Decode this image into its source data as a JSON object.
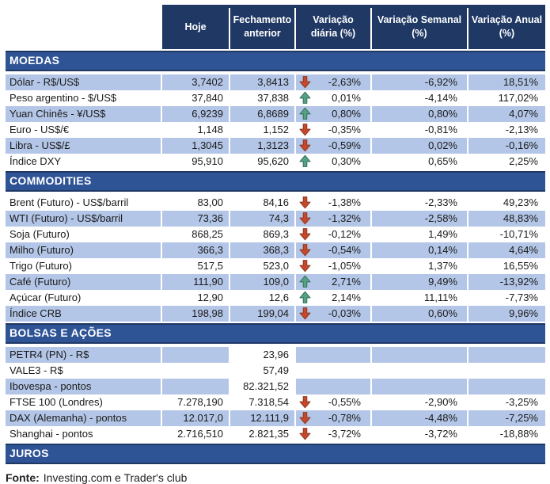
{
  "table": {
    "columns": [
      {
        "id": "label",
        "label": ""
      },
      {
        "id": "hoje",
        "label": "Hoje"
      },
      {
        "id": "fechamento",
        "label": "Fechamento anterior"
      },
      {
        "id": "diaria",
        "label": "Variação diária (%)"
      },
      {
        "id": "semanal",
        "label": "Variação Semanal (%)"
      },
      {
        "id": "anual",
        "label": "Variação Anual (%)"
      }
    ],
    "sections": [
      {
        "title": "MOEDAS",
        "zebra_start": "shaded",
        "rows": [
          {
            "label": "Dólar - R$/US$",
            "hoje": "3,7402",
            "fechamento": "3,8413",
            "arrow": "down",
            "daily": "-2,63%",
            "weekly": "-6,92%",
            "annual": "18,51%"
          },
          {
            "label": "Peso argentino - $/US$",
            "hoje": "37,840",
            "fechamento": "37,838",
            "arrow": "up",
            "daily": "0,01%",
            "weekly": "-4,14%",
            "annual": "117,02%"
          },
          {
            "label": "Yuan Chinês - ¥/US$",
            "hoje": "6,9239",
            "fechamento": "6,8689",
            "arrow": "up",
            "daily": "0,80%",
            "weekly": "0,80%",
            "annual": "4,07%"
          },
          {
            "label": "Euro - US$/€",
            "hoje": "1,148",
            "fechamento": "1,152",
            "arrow": "down",
            "daily": "-0,35%",
            "weekly": "-0,81%",
            "annual": "-2,13%"
          },
          {
            "label": "Libra - US$/£",
            "hoje": "1,3045",
            "fechamento": "1,3123",
            "arrow": "down",
            "daily": "-0,59%",
            "weekly": "0,02%",
            "annual": "-0,16%"
          },
          {
            "label": "Índice DXY",
            "hoje": "95,910",
            "fechamento": "95,620",
            "arrow": "up",
            "daily": "0,30%",
            "weekly": "0,65%",
            "annual": "2,25%"
          }
        ]
      },
      {
        "title": "COMMODITIES",
        "zebra_start": "plain",
        "rows": [
          {
            "label": "Brent (Futuro) - US$/barril",
            "hoje": "83,00",
            "fechamento": "84,16",
            "arrow": "down",
            "daily": "-1,38%",
            "weekly": "-2,33%",
            "annual": "49,23%"
          },
          {
            "label": "WTI (Futuro) - US$/barril",
            "hoje": "73,36",
            "fechamento": "74,3",
            "arrow": "down",
            "daily": "-1,32%",
            "weekly": "-2,58%",
            "annual": "48,83%"
          },
          {
            "label": "Soja (Futuro)",
            "hoje": "868,25",
            "fechamento": "869,3",
            "arrow": "down",
            "daily": "-0,12%",
            "weekly": "1,49%",
            "annual": "-10,71%"
          },
          {
            "label": "Milho (Futuro)",
            "hoje": "366,3",
            "fechamento": "368,3",
            "arrow": "down",
            "daily": "-0,54%",
            "weekly": "0,14%",
            "annual": "4,64%"
          },
          {
            "label": "Trigo (Futuro)",
            "hoje": "517,5",
            "fechamento": "523,0",
            "arrow": "down",
            "daily": "-1,05%",
            "weekly": "1,37%",
            "annual": "16,55%"
          },
          {
            "label": "Café (Futuro)",
            "hoje": "111,90",
            "fechamento": "109,0",
            "arrow": "up",
            "daily": "2,71%",
            "weekly": "9,49%",
            "annual": "-13,92%"
          },
          {
            "label": "Açúcar (Futuro)",
            "hoje": "12,90",
            "fechamento": "12,6",
            "arrow": "up",
            "daily": "2,14%",
            "weekly": "11,11%",
            "annual": "-7,73%"
          },
          {
            "label": "Índice CRB",
            "hoje": "198,98",
            "fechamento": "199,04",
            "arrow": "down",
            "daily": "-0,03%",
            "weekly": "0,60%",
            "annual": "9,96%"
          }
        ]
      },
      {
        "title": "BOLSAS E AÇÕES",
        "zebra_start": "shaded",
        "rows": [
          {
            "label": "PETR4 (PN) - R$",
            "hoje": "",
            "fechamento": "23,96",
            "arrow": null,
            "daily": "",
            "weekly": "",
            "annual": "",
            "fechamento_plain": true
          },
          {
            "label": "VALE3 - R$",
            "hoje": "",
            "fechamento": "57,49",
            "arrow": null,
            "daily": "",
            "weekly": "",
            "annual": ""
          },
          {
            "label": "Ibovespa - pontos",
            "hoje": "",
            "fechamento": "82.321,52",
            "arrow": null,
            "daily": "",
            "weekly": "",
            "annual": "",
            "fechamento_plain": true
          },
          {
            "label": "FTSE 100 (Londres)",
            "hoje": "7.278,190",
            "fechamento": "7.318,54",
            "arrow": "down",
            "daily": "-0,55%",
            "weekly": "-2,90%",
            "annual": "-3,25%"
          },
          {
            "label": "DAX (Alemanha) - pontos",
            "hoje": "12.017,0",
            "fechamento": "12.111,9",
            "arrow": "down",
            "daily": "-0,78%",
            "weekly": "-4,48%",
            "annual": "-7,25%"
          },
          {
            "label": "Shanghai - pontos",
            "hoje": "2.716,510",
            "fechamento": "2.821,35",
            "arrow": "down",
            "daily": "-3,72%",
            "weekly": "-3,72%",
            "annual": "-18,88%"
          }
        ]
      },
      {
        "title": "JUROS",
        "zebra_start": "shaded",
        "rows": []
      }
    ]
  },
  "footer": {
    "source_label": "Fonte:",
    "source_text": "Investing.com e Trader's club"
  },
  "colors": {
    "header_bg": "#1F3864",
    "section_bg": "#2F5496",
    "section_border": "#1F3864",
    "row_shaded_bg": "#B4C6E7",
    "row_plain_bg": "#FFFFFF",
    "header_text": "#FFFFFF",
    "body_text": "#1a1a1a",
    "down_arrow": "#C4492C",
    "down_arrow_outline": "#8E3620",
    "up_arrow": "#55A184",
    "up_arrow_outline": "#2F6E55"
  },
  "icons": {
    "up": "up-arrow-icon",
    "down": "down-arrow-icon"
  }
}
